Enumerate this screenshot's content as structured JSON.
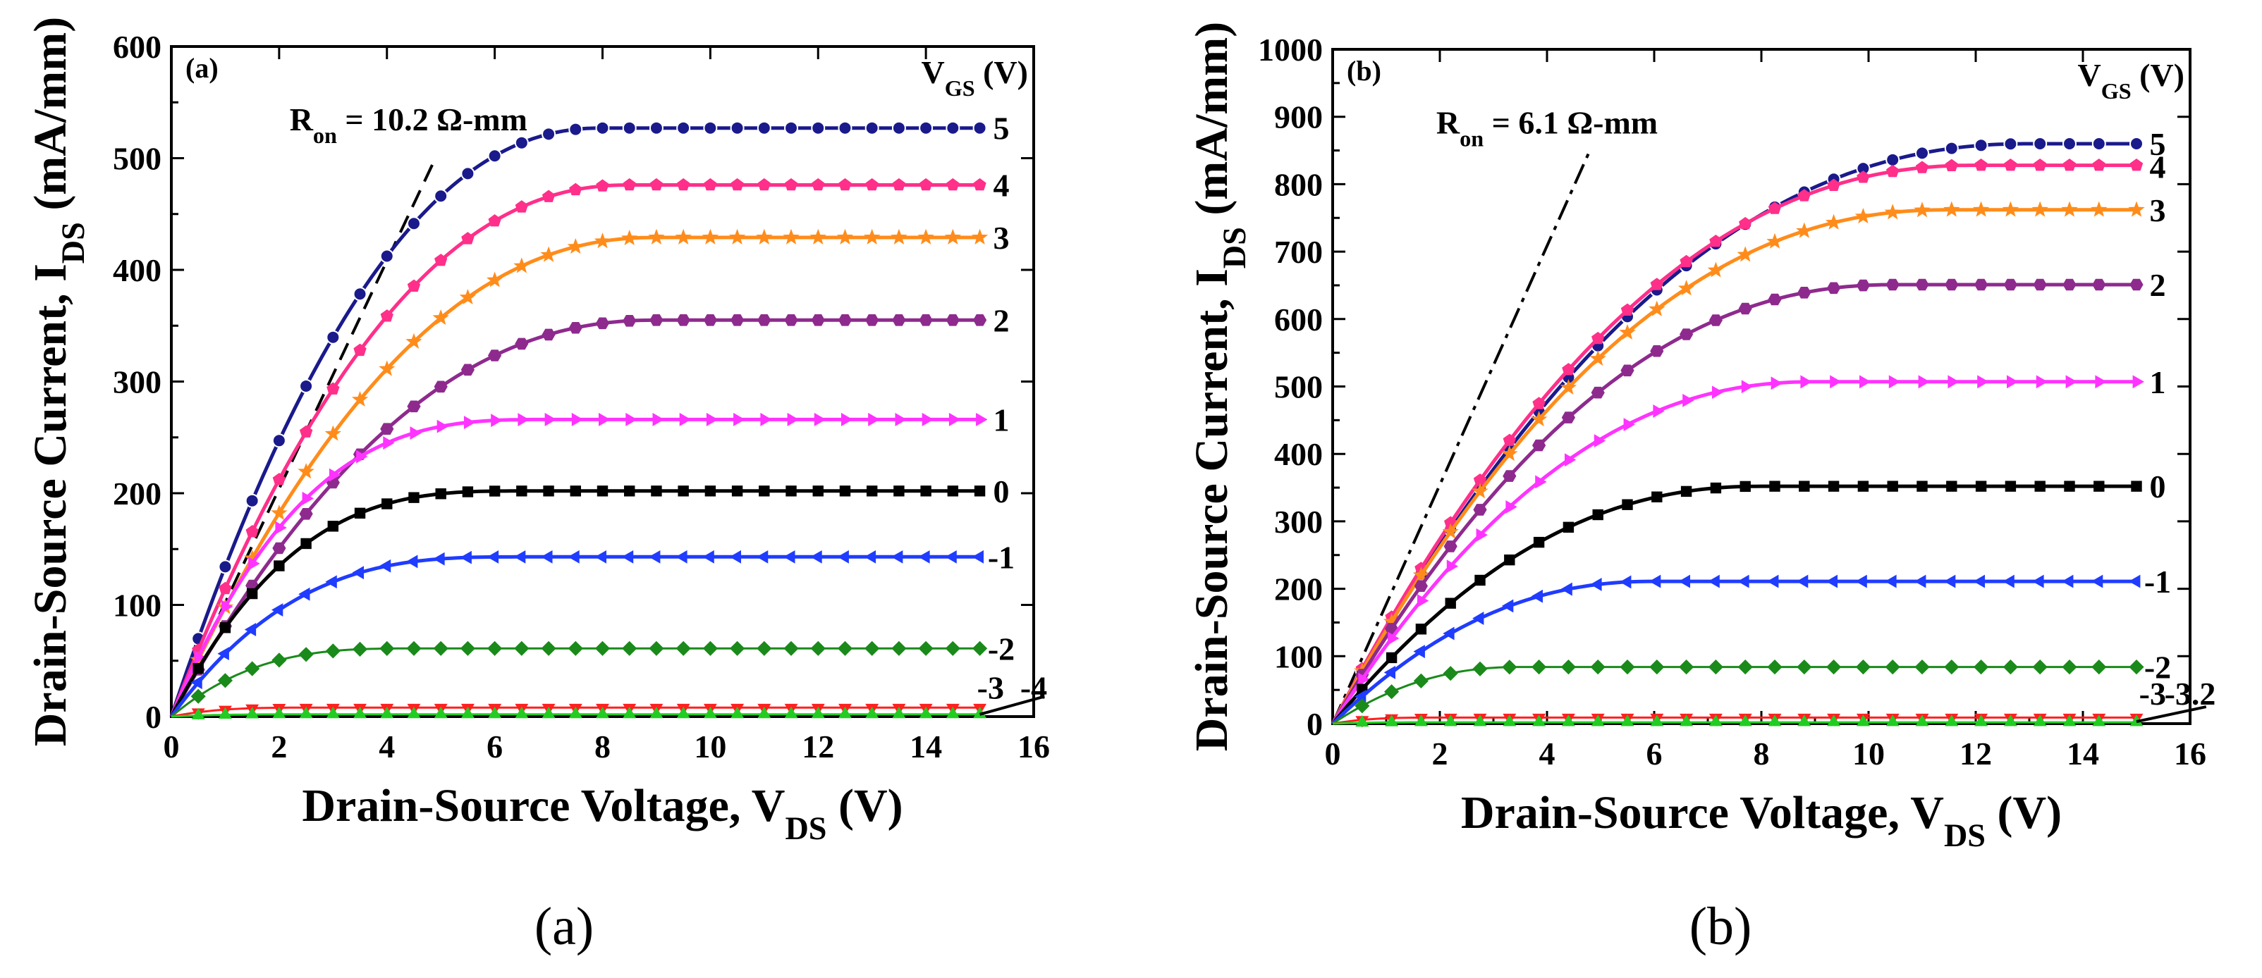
{
  "colors": {
    "5": "#1a1a8c",
    "4": "#ff2f8a",
    "3": "#ff8c1a",
    "2": "#8e2a8e",
    "1": "#ff33ff",
    "0": "#000000",
    "-1": "#1f3cff",
    "-2": "#1a8a1a",
    "-3": "#ff2020",
    "-4": "#22cc22",
    "-3.2": "#22cc22"
  },
  "chart_data": [
    {
      "type": "line",
      "panel_label": "(a)",
      "caption": "(a)",
      "xlabel": "Drain-Source Voltage, V",
      "xlabel_sub": "DS",
      "xlabel_unit": " (V)",
      "ylabel": "Drain-Source Current, I",
      "ylabel_sub": "DS",
      "ylabel_unit": " (mA/mm)",
      "xlim": [
        0,
        16
      ],
      "ylim": [
        0,
        600
      ],
      "xticks": [
        "0",
        "2",
        "4",
        "6",
        "8",
        "10",
        "12",
        "14",
        "16"
      ],
      "yticks": [
        "0",
        "100",
        "200",
        "300",
        "400",
        "500",
        "600"
      ],
      "legend_title": "V",
      "legend_title_sub": "GS",
      "legend_title_unit": " (V)",
      "ron_label": "R",
      "ron_sub": "on",
      "ron_value": " = 10.2 Ω-mm",
      "ron_line": {
        "x": [
          0,
          4.9
        ],
        "y": [
          0,
          500
        ],
        "style": "dashed"
      },
      "series": [
        {
          "name": "5",
          "marker": "circle",
          "sat": 527,
          "vsat": 8.0,
          "n": 2.2
        },
        {
          "name": "4",
          "marker": "pentagon",
          "sat": 476,
          "vsat": 8.5,
          "n": 2.2
        },
        {
          "name": "3",
          "marker": "star",
          "sat": 429,
          "vsat": 9.0,
          "n": 2.2
        },
        {
          "name": "2",
          "marker": "hexagon",
          "sat": 355,
          "vsat": 9.0,
          "n": 2.2
        },
        {
          "name": "1",
          "marker": "triangle-right",
          "sat": 266,
          "vsat": 7.0,
          "n": 3.0
        },
        {
          "name": "0",
          "marker": "square",
          "sat": 202,
          "vsat": 6.5,
          "n": 3.0
        },
        {
          "name": "-1",
          "marker": "triangle-left",
          "sat": 143,
          "vsat": 6.5,
          "n": 3.0
        },
        {
          "name": "-2",
          "marker": "diamond",
          "sat": 61,
          "vsat": 4.5,
          "n": 3.0
        },
        {
          "name": "-3",
          "marker": "triangle-down",
          "sat": 8,
          "vsat": 2.5,
          "n": 3.0
        },
        {
          "name": "-4",
          "marker": "triangle-up",
          "sat": 2,
          "vsat": 2.5,
          "n": 3.0
        }
      ],
      "x_points": [
        0,
        0.5,
        1,
        1.5,
        2,
        2.5,
        3,
        3.5,
        4,
        4.5,
        5,
        5.5,
        6,
        6.5,
        7,
        7.5,
        8,
        8.5,
        9,
        9.5,
        10,
        10.5,
        11,
        11.5,
        12,
        12.5,
        13,
        13.5,
        14,
        14.5,
        15
      ],
      "end_labels": [
        {
          "text": "5",
          "y": 527
        },
        {
          "text": "4",
          "y": 476
        },
        {
          "text": "3",
          "y": 429
        },
        {
          "text": "2",
          "y": 355
        },
        {
          "text": "1",
          "y": 266
        },
        {
          "text": "0",
          "y": 202
        },
        {
          "text": "-1",
          "y": 143
        },
        {
          "text": "-2",
          "y": 61
        }
      ],
      "low_labels": [
        {
          "text": "-3",
          "x": 15.2,
          "y": 16
        },
        {
          "text": "-4",
          "x": 16.0,
          "y": 16
        }
      ],
      "low_pointer": {
        "x": [
          15.0,
          16.2
        ],
        "y": [
          2,
          18
        ]
      }
    },
    {
      "type": "line",
      "panel_label": "(b)",
      "caption": "(b)",
      "xlabel": "Drain-Source Voltage, V",
      "xlabel_sub": "DS",
      "xlabel_unit": " (V)",
      "ylabel": "Drain-Source Current, I",
      "ylabel_sub": "DS",
      "ylabel_unit": " (mA/mm)",
      "xlim": [
        0,
        16
      ],
      "ylim": [
        0,
        1000
      ],
      "xticks": [
        "0",
        "2",
        "4",
        "6",
        "8",
        "10",
        "12",
        "14",
        "16"
      ],
      "yticks": [
        "0",
        "100",
        "200",
        "300",
        "400",
        "500",
        "600",
        "700",
        "800",
        "900",
        "1000"
      ],
      "legend_title": "V",
      "legend_title_sub": "GS",
      "legend_title_unit": " (V)",
      "ron_label": "R",
      "ron_sub": "on",
      "ron_value": " = 6.1 Ω-mm",
      "ron_line": {
        "x": [
          0,
          4.8
        ],
        "y": [
          0,
          850
        ],
        "style": "dashdot"
      },
      "series": [
        {
          "name": "5",
          "marker": "circle",
          "sat": 860,
          "vsat": 13.0,
          "n": 2.2
        },
        {
          "name": "4",
          "marker": "pentagon",
          "sat": 828,
          "vsat": 12.0,
          "n": 2.2
        },
        {
          "name": "3",
          "marker": "star",
          "sat": 762,
          "vsat": 11.5,
          "n": 2.2
        },
        {
          "name": "2",
          "marker": "hexagon",
          "sat": 651,
          "vsat": 10.5,
          "n": 2.2
        },
        {
          "name": "1",
          "marker": "triangle-right",
          "sat": 507,
          "vsat": 9.0,
          "n": 2.2
        },
        {
          "name": "0",
          "marker": "square",
          "sat": 352,
          "vsat": 8.0,
          "n": 2.2
        },
        {
          "name": "-1",
          "marker": "triangle-left",
          "sat": 211,
          "vsat": 6.0,
          "n": 2.2
        },
        {
          "name": "-2",
          "marker": "diamond",
          "sat": 84,
          "vsat": 3.5,
          "n": 2.2
        },
        {
          "name": "-3",
          "marker": "triangle-down",
          "sat": 9,
          "vsat": 2.0,
          "n": 3.0
        },
        {
          "name": "-3.2",
          "marker": "triangle-up",
          "sat": 2,
          "vsat": 2.0,
          "n": 3.0
        }
      ],
      "x_points": [
        0,
        0.55,
        1.1,
        1.65,
        2.2,
        2.75,
        3.3,
        3.85,
        4.4,
        4.95,
        5.5,
        6.05,
        6.6,
        7.15,
        7.7,
        8.25,
        8.8,
        9.35,
        9.9,
        10.45,
        11,
        11.55,
        12.1,
        12.65,
        13.2,
        13.75,
        14.3,
        15
      ],
      "end_labels": [
        {
          "text": "5",
          "y": 860
        },
        {
          "text": "4",
          "y": 826
        },
        {
          "text": "3",
          "y": 762
        },
        {
          "text": "2",
          "y": 651
        },
        {
          "text": "1",
          "y": 507
        },
        {
          "text": "0",
          "y": 352
        },
        {
          "text": "-1",
          "y": 211
        },
        {
          "text": "-2",
          "y": 84
        }
      ],
      "low_labels": [
        {
          "text": "-3",
          "x": 15.3,
          "y": 28
        },
        {
          "text": "-3.2",
          "x": 16.0,
          "y": 28
        }
      ],
      "low_pointer": {
        "x": [
          15.0,
          16.3
        ],
        "y": [
          3,
          25
        ]
      }
    }
  ]
}
